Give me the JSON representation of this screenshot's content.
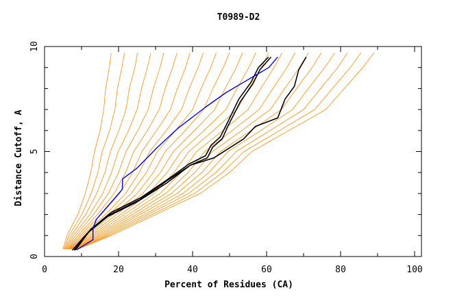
{
  "chart_data": {
    "type": "line",
    "title": "T0989-D2",
    "xlabel": "Percent of Residues (CA)",
    "ylabel": "Distance Cutoff, A",
    "xlim": [
      0,
      100
    ],
    "ylim": [
      0,
      10
    ],
    "xticks": [
      0,
      20,
      40,
      60,
      80,
      100
    ],
    "yticks": [
      0,
      5,
      10
    ],
    "grid": false,
    "colors": {
      "others": "#ff8c00",
      "highlight": "#000000",
      "reference": "#0000ff"
    },
    "y_levels": [
      0.35,
      1,
      2,
      3,
      4,
      5,
      6,
      7,
      8,
      9,
      9.7
    ],
    "orange_series_x": [
      [
        5,
        6,
        9,
        11,
        12.5,
        13.5,
        15,
        16,
        16.5,
        17.5,
        18
      ],
      [
        5.2,
        6.6,
        10.1,
        12.6,
        14.4,
        15.6,
        17.6,
        19,
        19.7,
        20.9,
        21.6
      ],
      [
        5.4,
        7.2,
        11.1,
        14.1,
        16.3,
        17.8,
        20.1,
        22,
        22.9,
        24.4,
        25.1
      ],
      [
        5.6,
        7.8,
        12.2,
        15.7,
        18.1,
        19.9,
        22.7,
        25,
        26.2,
        27.8,
        28.7
      ],
      [
        5.8,
        8.4,
        13.2,
        17.2,
        20,
        22,
        25.2,
        28,
        29.4,
        31.2,
        32.2
      ],
      [
        6,
        9,
        14.3,
        18.8,
        21.9,
        24.1,
        27.8,
        31,
        32.6,
        34.6,
        35.8
      ],
      [
        6.2,
        9.6,
        15.3,
        20.3,
        23.8,
        26.3,
        30.3,
        34,
        35.9,
        38.1,
        39.3
      ],
      [
        6.4,
        10.2,
        16.4,
        21.9,
        25.6,
        28.4,
        32.9,
        37,
        39.1,
        41.5,
        42.9
      ],
      [
        6.6,
        10.8,
        17.4,
        23.4,
        27.5,
        30.5,
        35.4,
        40,
        42.3,
        44.9,
        46.4
      ],
      [
        6.8,
        11.4,
        18.5,
        25,
        29.4,
        32.6,
        38,
        43,
        45.5,
        48.3,
        50
      ],
      [
        7,
        12,
        19.5,
        26.5,
        31.3,
        34.8,
        40.5,
        46,
        48.8,
        51.8,
        53.5
      ],
      [
        7.2,
        12.6,
        20.6,
        28.1,
        33.1,
        36.9,
        43.1,
        49,
        52,
        55.2,
        57.1
      ],
      [
        7.4,
        13.2,
        21.6,
        29.6,
        35,
        39,
        45.6,
        52,
        55.2,
        58.6,
        60.6
      ],
      [
        7.6,
        13.8,
        22.7,
        31.2,
        36.9,
        41.1,
        48.2,
        55,
        58.4,
        62,
        64.2
      ],
      [
        7.8,
        14.4,
        23.7,
        32.7,
        38.8,
        43.3,
        50.7,
        58,
        61.7,
        65.5,
        67.7
      ],
      [
        8,
        15,
        24.8,
        34.3,
        40.6,
        45.4,
        53.3,
        61,
        64.9,
        68.9,
        71.3
      ],
      [
        8.2,
        15.6,
        25.8,
        35.8,
        42.5,
        47.5,
        55.8,
        64,
        68.1,
        72.3,
        74.8
      ],
      [
        8.4,
        16.2,
        26.9,
        37.4,
        44.4,
        49.6,
        58.4,
        67,
        71.3,
        75.7,
        78.4
      ],
      [
        8.6,
        16.8,
        27.9,
        38.9,
        46.3,
        51.8,
        60.9,
        70,
        74.6,
        79.2,
        81.9
      ],
      [
        8.8,
        17.4,
        29,
        40.5,
        48.1,
        53.9,
        63.5,
        73,
        77.8,
        82.6,
        85.5
      ],
      [
        9,
        18,
        30,
        42,
        50,
        56,
        66,
        76,
        81,
        86,
        89
      ]
    ],
    "black_series": [
      [
        [
          8,
          0.3
        ],
        [
          12,
          1.2
        ],
        [
          17.7,
          2
        ],
        [
          25.7,
          2.7
        ],
        [
          33,
          3.6
        ],
        [
          39.4,
          4.35
        ],
        [
          44,
          4.7
        ],
        [
          45.4,
          5.2
        ],
        [
          48,
          5.6
        ],
        [
          49.8,
          6.3
        ],
        [
          53,
          7.4
        ],
        [
          56.2,
          8.2
        ],
        [
          58.2,
          8.9
        ],
        [
          61.2,
          9.5
        ]
      ],
      [
        [
          7.5,
          0.3
        ],
        [
          11.5,
          1.1
        ],
        [
          17,
          1.9
        ],
        [
          25,
          2.6
        ],
        [
          33,
          3.5
        ],
        [
          39.4,
          4.35
        ],
        [
          45.8,
          4.7
        ],
        [
          53.8,
          5.6
        ],
        [
          57,
          6.2
        ],
        [
          63,
          6.6
        ],
        [
          65,
          7.5
        ],
        [
          67.5,
          8.1
        ],
        [
          68.7,
          8.9
        ],
        [
          70.7,
          9.5
        ]
      ],
      [
        [
          8.3,
          0.3
        ],
        [
          12.5,
          1.3
        ],
        [
          18,
          2.1
        ],
        [
          26,
          2.8
        ],
        [
          33.5,
          3.7
        ],
        [
          39,
          4.4
        ],
        [
          43.5,
          4.8
        ],
        [
          45,
          5.3
        ],
        [
          47.5,
          5.7
        ],
        [
          49.5,
          6.4
        ],
        [
          52.5,
          7.5
        ],
        [
          55.8,
          8.3
        ],
        [
          57.8,
          9
        ],
        [
          60.5,
          9.5
        ]
      ]
    ],
    "blue_series": [
      [
        8.7,
        0.32
      ],
      [
        13.1,
        0.8
      ],
      [
        13.1,
        1.35
      ],
      [
        14,
        1.77
      ],
      [
        21,
        3.2
      ],
      [
        21.1,
        3.7
      ],
      [
        24.9,
        4.2
      ],
      [
        30.5,
        5.2
      ],
      [
        36,
        6.1
      ],
      [
        43.4,
        7.1
      ],
      [
        49,
        7.8
      ],
      [
        53.8,
        8.3
      ],
      [
        60.6,
        9.0
      ],
      [
        63,
        9.5
      ]
    ]
  }
}
